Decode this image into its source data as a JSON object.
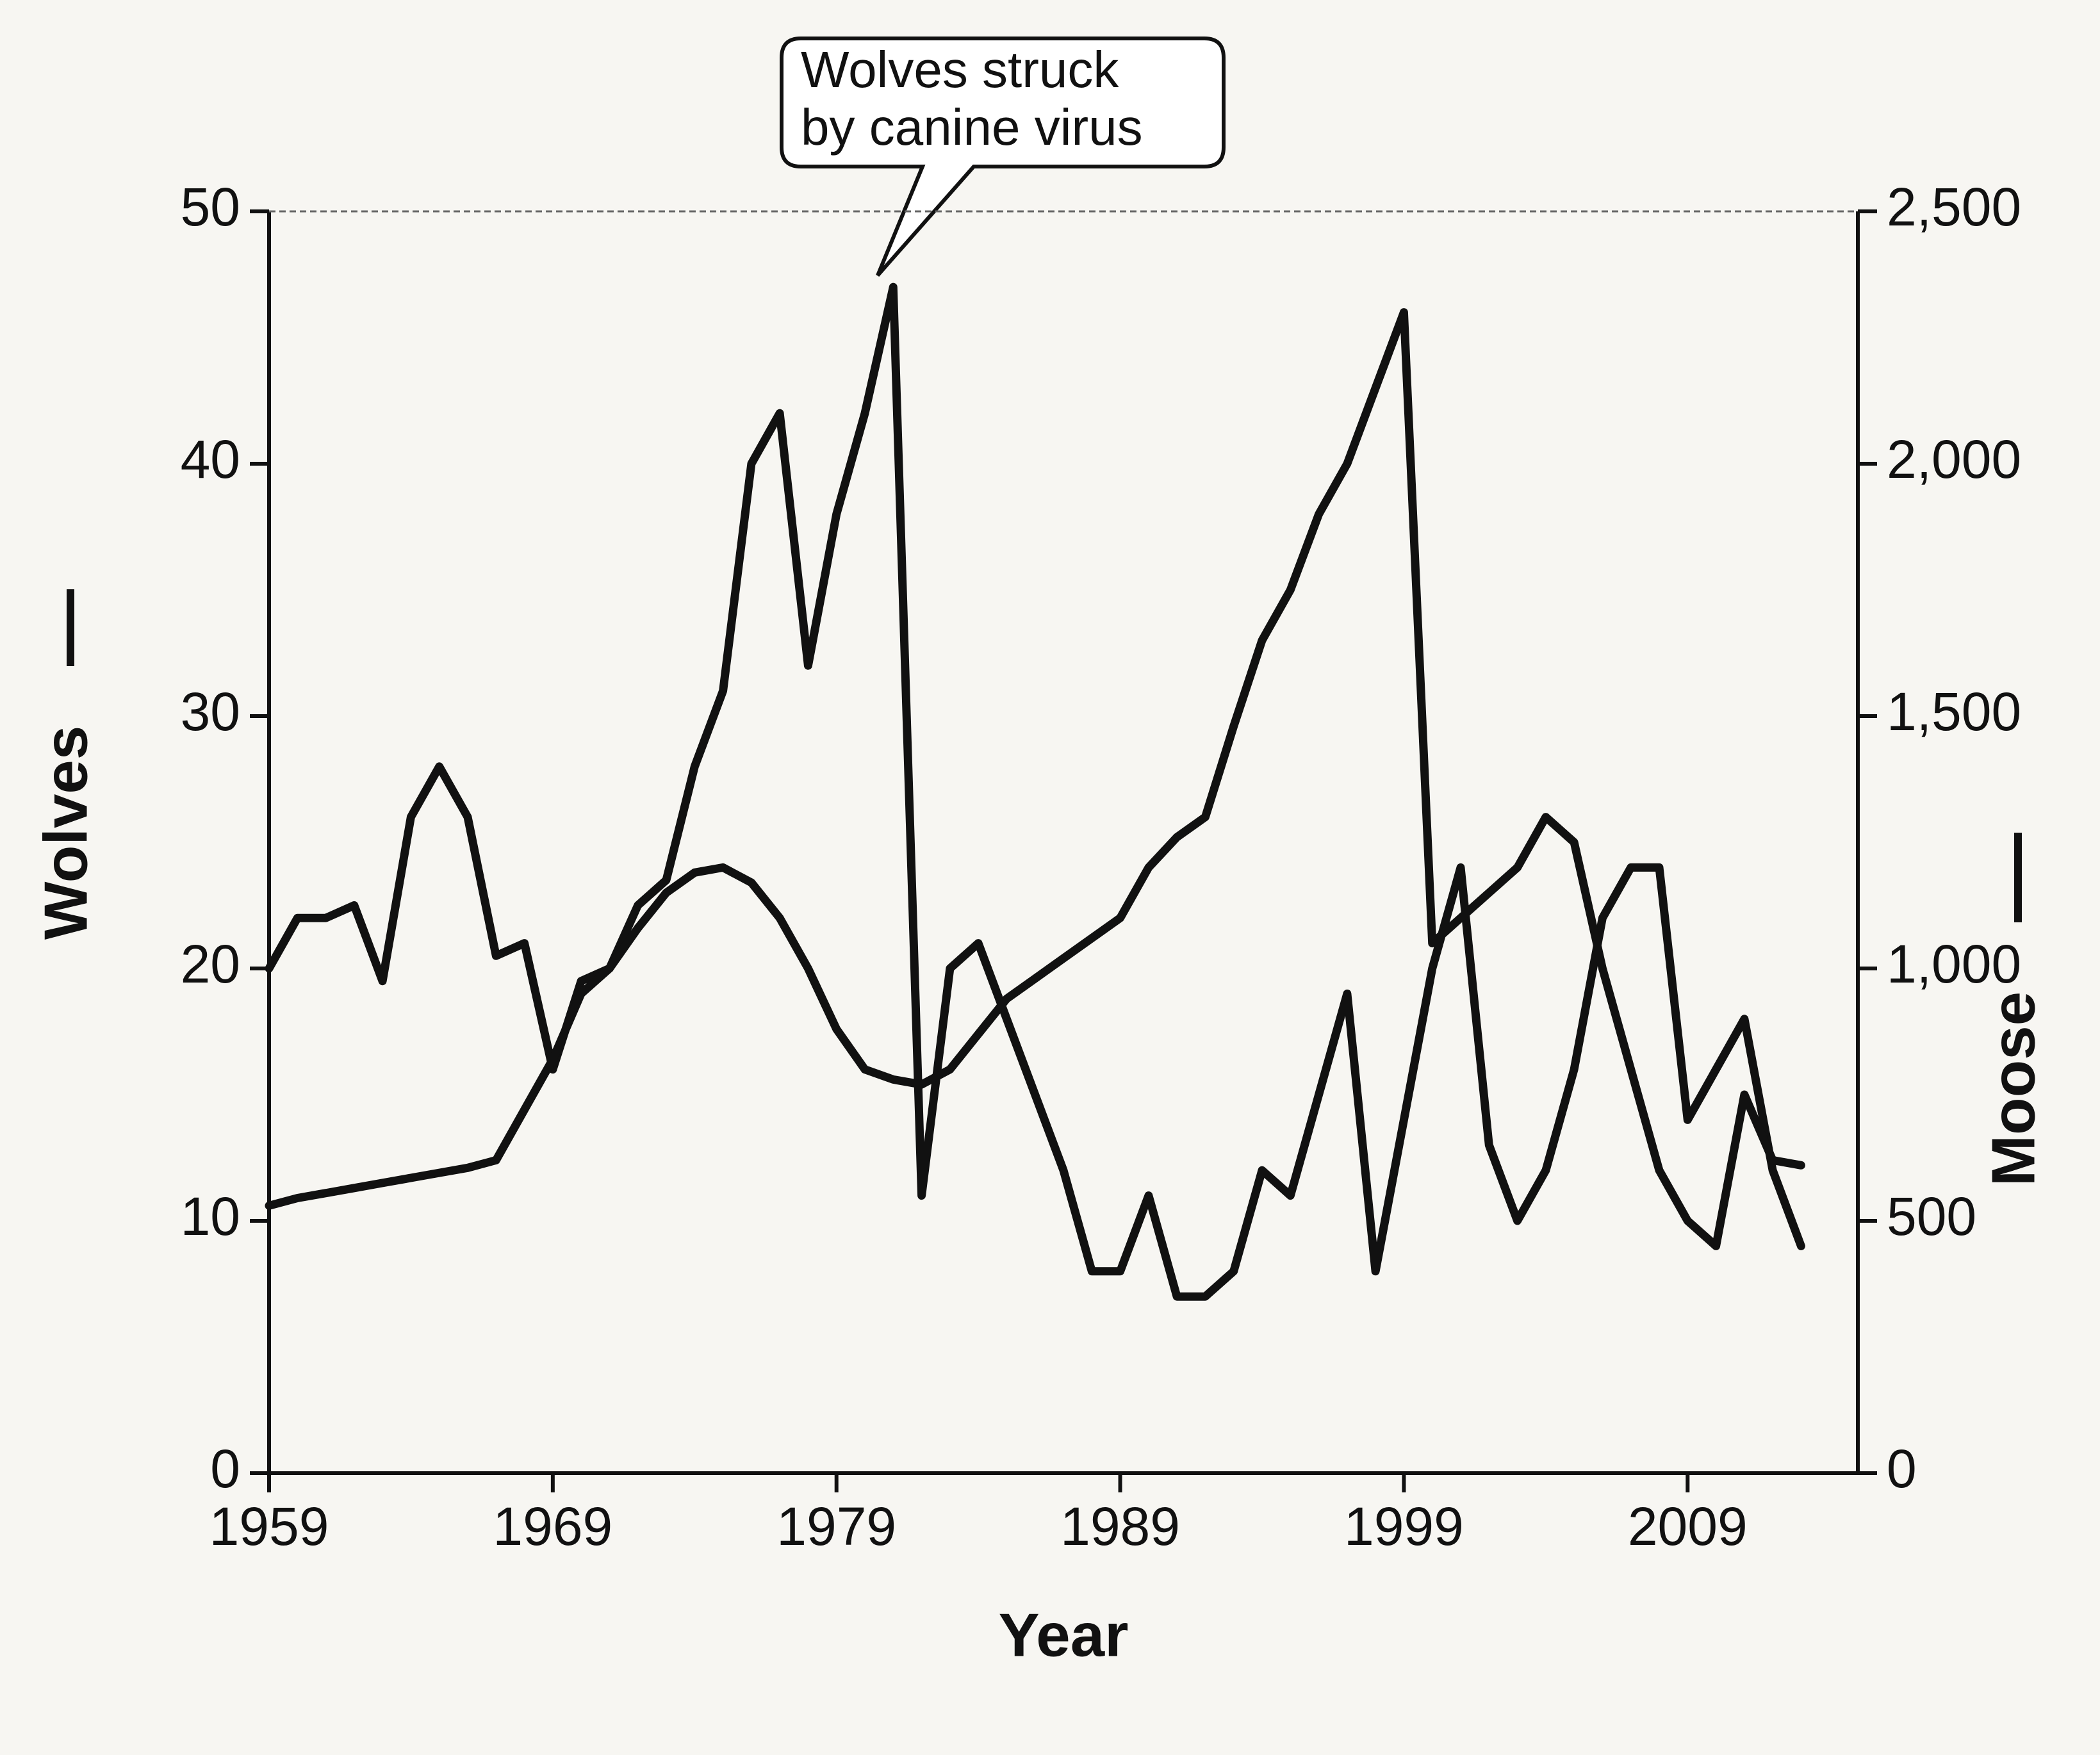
{
  "chart_data": {
    "type": "line",
    "x_label": "Year",
    "annotation": [
      "Wolves struck",
      "by canine virus"
    ],
    "x": [
      1959,
      1960,
      1961,
      1962,
      1963,
      1964,
      1965,
      1966,
      1967,
      1968,
      1969,
      1970,
      1971,
      1972,
      1973,
      1974,
      1975,
      1976,
      1977,
      1978,
      1979,
      1980,
      1981,
      1982,
      1983,
      1984,
      1985,
      1986,
      1987,
      1988,
      1989,
      1990,
      1991,
      1992,
      1993,
      1994,
      1995,
      1996,
      1997,
      1998,
      1999,
      2000,
      2001,
      2002,
      2003,
      2004,
      2005,
      2006,
      2007,
      2008,
      2009,
      2010,
      2011,
      2012,
      2013
    ],
    "series": [
      {
        "name": "Wolves",
        "color": "#111111",
        "axis": "y",
        "values": [
          20,
          22,
          22,
          22.5,
          19.5,
          26,
          28,
          26,
          20.5,
          21,
          16,
          19.5,
          20,
          22.5,
          23.5,
          28,
          31,
          40,
          42,
          32,
          38,
          42,
          47,
          11,
          20,
          21,
          18,
          15,
          12,
          8,
          8,
          11,
          7,
          7,
          8,
          12,
          11,
          15,
          19,
          8,
          14,
          20,
          24,
          13,
          10,
          12,
          16,
          22,
          24,
          24,
          14,
          16,
          18,
          12,
          9
        ]
      },
      {
        "name": "Moose",
        "color": "#111111",
        "axis": "y2",
        "values": [
          530,
          545,
          555,
          565,
          575,
          585,
          595,
          605,
          620,
          720,
          820,
          950,
          1000,
          1080,
          1150,
          1190,
          1200,
          1170,
          1100,
          1000,
          880,
          800,
          780,
          770,
          800,
          870,
          940,
          980,
          1020,
          1060,
          1100,
          1200,
          1260,
          1300,
          1480,
          1650,
          1750,
          1900,
          2000,
          2150,
          2300,
          1050,
          1100,
          1150,
          1200,
          1300,
          1250,
          1000,
          800,
          600,
          500,
          450,
          750,
          620,
          610
        ]
      }
    ],
    "xlim": [
      1959,
      2015
    ],
    "xticks": [
      1959,
      1969,
      1979,
      1989,
      1999,
      2009
    ],
    "ylim": [
      0,
      50
    ],
    "yticks": [
      0,
      10,
      20,
      30,
      40,
      50
    ],
    "y2lim": [
      0,
      2500
    ],
    "y2ticks": [
      0,
      500,
      {
        "value": 1000,
        "label": "1,000"
      },
      {
        "value": 1500,
        "label": "1,500"
      },
      {
        "value": 2000,
        "label": "2,000"
      },
      {
        "value": 2500,
        "label": "2,500"
      }
    ],
    "grid": false
  }
}
